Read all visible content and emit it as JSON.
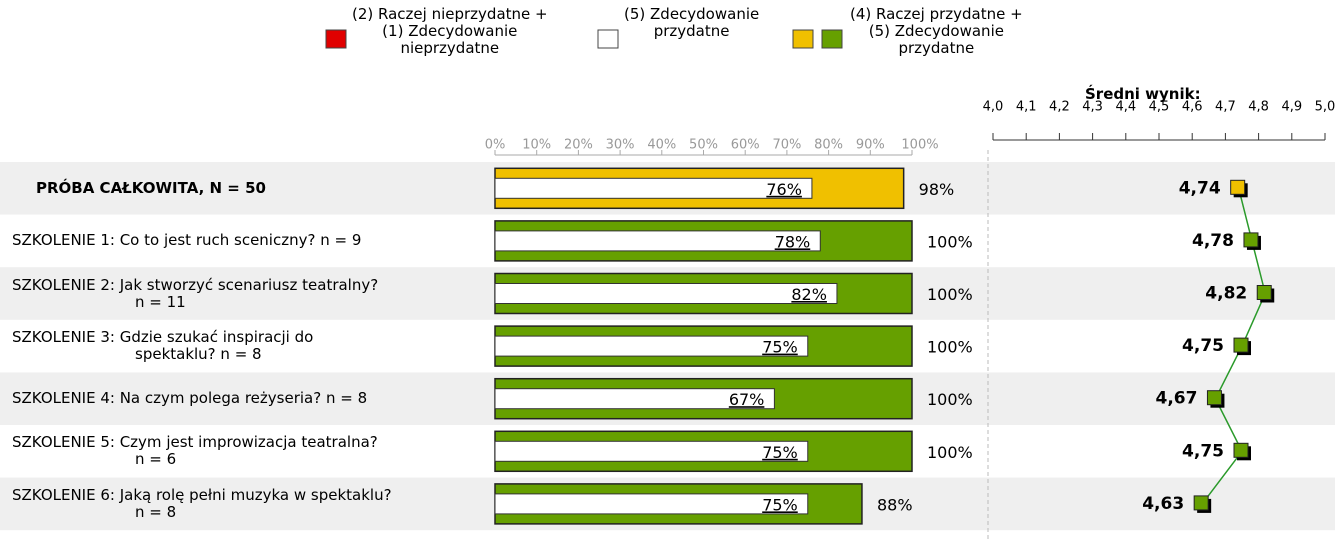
{
  "chart_data": {
    "type": "bar",
    "legend": [
      {
        "name": "(2) Raczej nieprzydatne +\n(1) Zdecydowanie\nnieprzydatne",
        "colors": [
          "#e00000"
        ]
      },
      {
        "name": "(5) Zdecydowanie\nprzydatne",
        "colors": [
          "#ffffff"
        ]
      },
      {
        "name": "(4) Raczej przydatne +\n(5) Zdecydowanie\nprzydatne",
        "colors": [
          "#f0c000",
          "#66a000"
        ]
      }
    ],
    "categories": [
      "PRÓBA CAŁKOWITA, N = 50",
      "SZKOLENIE 1: Co to jest ruch sceniczny? n = 9",
      "SZKOLENIE 2: Jak stworzyć scenariusz teatralny?\nn = 11",
      "SZKOLENIE 3: Gdzie szukać inspiracji do\nspektaklu? n = 8",
      "SZKOLENIE 4: Na czym polega reżyseria? n = 8",
      "SZKOLENIE 5: Czym jest improwizacja teatralna?\nn = 6",
      "SZKOLENIE 6: Jaką rolę pełni muzyka w spektaklu?\nn = 8"
    ],
    "xlim": [
      0,
      100
    ],
    "xticks": [
      {
        "value": 0,
        "label": "0%"
      },
      {
        "value": 10,
        "label": "10%"
      },
      {
        "value": 20,
        "label": "20%"
      },
      {
        "value": 30,
        "label": "30%"
      },
      {
        "value": 40,
        "label": "40%"
      },
      {
        "value": 50,
        "label": "50%"
      },
      {
        "value": 60,
        "label": "60%"
      },
      {
        "value": 70,
        "label": "70%"
      },
      {
        "value": 80,
        "label": "80%"
      },
      {
        "value": 90,
        "label": "90%"
      },
      {
        "value": 100,
        "label": "100%"
      }
    ],
    "series": [
      {
        "colors": [
          "#f0c000",
          "#66a000",
          "#66a000",
          "#66a000",
          "#66a000",
          "#66a000",
          "#66a000"
        ],
        "values": [
          98,
          100,
          100,
          100,
          100,
          100,
          88
        ],
        "value_labels": [
          "98%",
          "100%",
          "100%",
          "100%",
          "100%",
          "100%",
          "88%"
        ]
      },
      {
        "color": "#ffffff",
        "values": [
          76,
          78,
          82,
          75,
          67,
          75,
          75
        ],
        "value_labels": [
          "76%",
          "78%",
          "82%",
          "75%",
          "67%",
          "75%",
          "75%"
        ]
      }
    ],
    "mean_title": "Średni wynik:",
    "x2lim": [
      4.0,
      5.0
    ],
    "x2ticks": [
      {
        "value": 4.0,
        "label": "4,0"
      },
      {
        "value": 4.1,
        "label": "4,1"
      },
      {
        "value": 4.2,
        "label": "4,2"
      },
      {
        "value": 4.3,
        "label": "4,3"
      },
      {
        "value": 4.4,
        "label": "4,4"
      },
      {
        "value": 4.5,
        "label": "4,5"
      },
      {
        "value": 4.6,
        "label": "4,6"
      },
      {
        "value": 4.7,
        "label": "4,7"
      },
      {
        "value": 4.8,
        "label": "4,8"
      },
      {
        "value": 4.9,
        "label": "4,9"
      },
      {
        "value": 5.0,
        "label": "5,0"
      }
    ],
    "mean": {
      "colors": [
        "#f0c000",
        "#66a000",
        "#66a000",
        "#66a000",
        "#66a000",
        "#66a000",
        "#66a000"
      ],
      "line_color": "#2a9a2a",
      "values": [
        4.74,
        4.78,
        4.82,
        4.75,
        4.67,
        4.75,
        4.63
      ],
      "value_labels": [
        "4,74",
        "4,78",
        "4,82",
        "4,75",
        "4,67",
        "4,75",
        "4,63"
      ]
    }
  }
}
